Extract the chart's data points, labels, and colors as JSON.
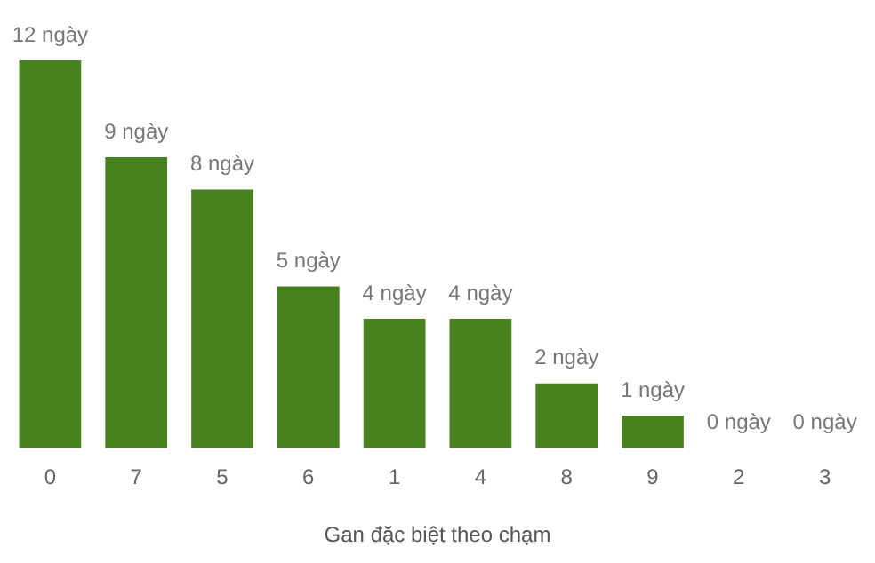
{
  "chart_data": {
    "type": "bar",
    "xlabel": "Gan đặc biệt theo chạm",
    "categories": [
      "0",
      "7",
      "5",
      "6",
      "1",
      "4",
      "8",
      "9",
      "2",
      "3"
    ],
    "values": [
      12,
      9,
      8,
      5,
      4,
      4,
      2,
      1,
      0,
      0
    ],
    "value_labels": [
      "12 ngày",
      "9 ngày",
      "8 ngày",
      "5 ngày",
      "4 ngày",
      "4 ngày",
      "2 ngày",
      "1 ngày",
      "0 ngày",
      "0 ngày"
    ],
    "color": "#48821f",
    "tick_labels": "x",
    "grid": false
  }
}
